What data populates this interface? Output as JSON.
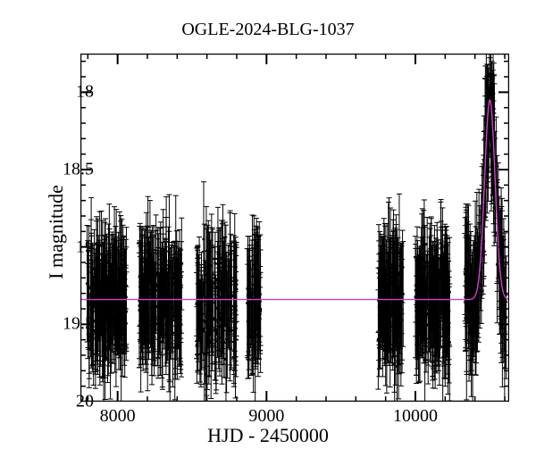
{
  "title": "OGLE-2024-BLG-1037",
  "xlabel": "HJD - 2450000",
  "ylabel": "I magnitude",
  "type": "scatter_errorbar_with_model",
  "axes": {
    "x": {
      "lim": [
        7750,
        10630
      ],
      "major_ticks": [
        8000,
        9000,
        10000
      ],
      "minor_step": 200,
      "font_size": 20
    },
    "y": {
      "lim": [
        20,
        17.75
      ],
      "major_ticks": [
        18,
        18.5,
        19,
        19.5,
        20
      ],
      "minor_step": 0.1,
      "font_size": 20,
      "inverted": true
    }
  },
  "colors": {
    "data": "#000000",
    "model": "#d040d0",
    "background": "#ffffff",
    "axis": "#000000"
  },
  "style": {
    "axis_linewidth": 2.5,
    "major_tick_len": 12,
    "minor_tick_len": 6,
    "errorbar_cap": 3,
    "marker_radius": 1.6,
    "model_linewidth": 1.4,
    "title_fontsize": 20,
    "label_fontsize": 22
  },
  "model": {
    "baseline": 19.34,
    "peak_mag": 18.05,
    "t0": 10500,
    "tE": 35
  },
  "seasons": [
    {
      "t_start": 7790,
      "t_end": 8060,
      "baseline": 19.35,
      "scatter": 0.28,
      "n": 170
    },
    {
      "t_start": 8145,
      "t_end": 8430,
      "baseline": 19.35,
      "scatter": 0.28,
      "n": 170
    },
    {
      "t_start": 8530,
      "t_end": 8800,
      "baseline": 19.35,
      "scatter": 0.3,
      "n": 150
    },
    {
      "t_start": 8870,
      "t_end": 8960,
      "baseline": 19.35,
      "scatter": 0.25,
      "n": 60
    },
    {
      "t_start": 9750,
      "t_end": 9920,
      "baseline": 19.35,
      "scatter": 0.28,
      "n": 120
    },
    {
      "t_start": 10000,
      "t_end": 10230,
      "baseline": 19.35,
      "scatter": 0.28,
      "n": 160
    },
    {
      "t_start": 10330,
      "t_end": 10610,
      "baseline": 19.35,
      "scatter": 0.3,
      "n": 170,
      "has_event": true
    }
  ]
}
